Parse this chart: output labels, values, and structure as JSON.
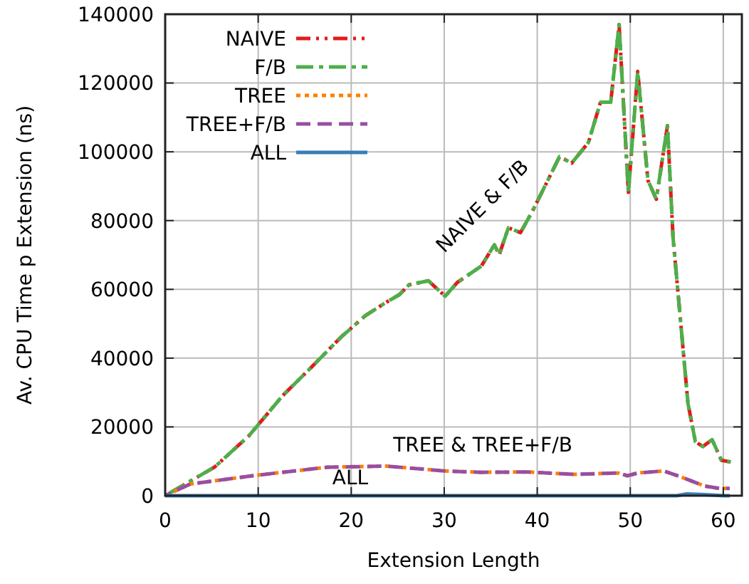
{
  "chart_data": {
    "type": "line",
    "xlabel": "Extension Length",
    "ylabel": "Av. CPU Time p Extension (ns)",
    "xlim": [
      0,
      62
    ],
    "ylim": [
      0,
      140000
    ],
    "xticks": [
      0,
      10,
      20,
      30,
      40,
      50,
      60
    ],
    "yticks": [
      0,
      20000,
      40000,
      60000,
      80000,
      100000,
      120000,
      140000
    ],
    "grid": true,
    "legend": "top left",
    "marker": "none",
    "series": [
      {
        "name": "NAIVE",
        "color": "#e41a1c",
        "line_style": "dashed",
        "x": [
          0,
          5.3,
          9,
          12.6,
          15.7,
          18.9,
          21.5,
          23.5,
          25.2,
          26.2,
          28.3,
          30.1,
          31.4,
          34,
          35.4,
          35.9,
          36.9,
          38.2,
          39.5,
          42.4,
          43.7,
          45.5,
          46.8,
          47.9,
          48.8,
          49.8,
          50.8,
          51.9,
          52.8,
          54,
          54.6,
          56.2,
          57,
          57.8,
          58.8,
          59.8,
          60.8
        ],
        "values": [
          0,
          8300,
          17400,
          29000,
          37300,
          46100,
          52300,
          55800,
          58500,
          61300,
          62500,
          58000,
          62000,
          66800,
          73000,
          70000,
          77900,
          76500,
          82800,
          98600,
          96700,
          102700,
          114400,
          114400,
          137000,
          88200,
          123400,
          91700,
          86200,
          107600,
          75100,
          26900,
          15700,
          14300,
          16300,
          10300,
          9800
        ]
      },
      {
        "name": "F/B",
        "color": "#4daf4a",
        "line_style": "dashed",
        "x": [
          0,
          5.3,
          9,
          12.6,
          15.7,
          18.9,
          21.5,
          23.5,
          25.2,
          26.2,
          28.3,
          30.1,
          31.4,
          34,
          35.4,
          35.9,
          36.9,
          38.2,
          39.5,
          42.4,
          43.7,
          45.5,
          46.8,
          47.9,
          48.8,
          49.8,
          50.8,
          51.9,
          52.8,
          54,
          54.6,
          56.2,
          57,
          57.8,
          58.8,
          59.8,
          60.8
        ],
        "values": [
          0,
          8300,
          17400,
          29000,
          37300,
          46100,
          52300,
          55800,
          58500,
          61300,
          62500,
          58000,
          62000,
          66800,
          73000,
          70000,
          77900,
          76500,
          82800,
          98600,
          96700,
          102700,
          114400,
          114400,
          137000,
          88200,
          123400,
          91700,
          86200,
          107600,
          75100,
          26900,
          15700,
          14300,
          16300,
          10300,
          9800
        ]
      },
      {
        "name": "TREE",
        "color": "#ff7f00",
        "line_style": "dotted",
        "x": [
          0,
          2.7,
          9.7,
          17.5,
          23.8,
          30,
          34,
          39,
          44,
          48.7,
          49.7,
          50.8,
          53.6,
          55.4,
          58,
          59.6,
          60.7
        ],
        "values": [
          0,
          3400,
          5900,
          8300,
          8600,
          7200,
          6800,
          6900,
          6200,
          6600,
          5800,
          6600,
          7200,
          5500,
          2800,
          2100,
          2100
        ]
      },
      {
        "name": "TREE+F/B",
        "color": "#984ea3",
        "line_style": "dashed",
        "x": [
          0,
          2.7,
          9.7,
          17.5,
          23.8,
          30,
          34,
          39,
          44,
          48.7,
          49.7,
          50.8,
          53.6,
          55.4,
          58,
          59.6,
          60.7
        ],
        "values": [
          0,
          3400,
          5900,
          8300,
          8600,
          7200,
          6800,
          6900,
          6200,
          6600,
          5800,
          6600,
          7200,
          5500,
          2800,
          2100,
          2100
        ]
      },
      {
        "name": "ALL",
        "color": "#377eb8",
        "line_style": "solid",
        "x": [
          0,
          10,
          20,
          30,
          40,
          50,
          55,
          56,
          58,
          60,
          60.7
        ],
        "values": [
          0,
          0,
          0,
          0,
          0,
          0,
          0,
          500,
          300,
          0,
          0
        ]
      }
    ],
    "annotations": [
      "NAIVE & F/B",
      "TREE & TREE+F/B",
      "ALL"
    ]
  }
}
